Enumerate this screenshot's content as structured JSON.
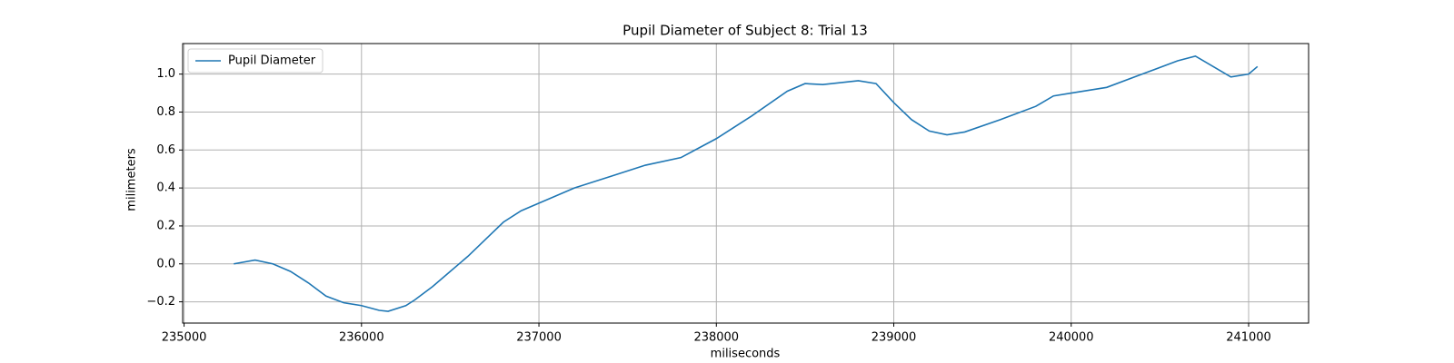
{
  "chart_data": {
    "type": "line",
    "title": "Pupil Diameter of Subject 8: Trial 13",
    "x_label": "miliseconds",
    "y_label": "milimeters",
    "x": [
      235280,
      235400,
      235500,
      235600,
      235700,
      235800,
      235900,
      236000,
      236100,
      236150,
      236250,
      236300,
      236400,
      236500,
      236600,
      236700,
      236800,
      236900,
      237000,
      237200,
      237400,
      237600,
      237800,
      238000,
      238200,
      238400,
      238500,
      238600,
      238800,
      238900,
      239000,
      239100,
      239200,
      239300,
      239400,
      239600,
      239800,
      239900,
      240000,
      240200,
      240400,
      240600,
      240700,
      240800,
      240900,
      241000,
      241050
    ],
    "series": [
      {
        "name": "Pupil Diameter",
        "color": "#1f77b4",
        "values": [
          0.0,
          0.02,
          0.0,
          -0.04,
          -0.1,
          -0.17,
          -0.205,
          -0.22,
          -0.245,
          -0.25,
          -0.22,
          -0.19,
          -0.12,
          -0.04,
          0.04,
          0.13,
          0.22,
          0.28,
          0.32,
          0.4,
          0.46,
          0.52,
          0.56,
          0.66,
          0.78,
          0.91,
          0.95,
          0.945,
          0.965,
          0.95,
          0.85,
          0.76,
          0.7,
          0.68,
          0.695,
          0.76,
          0.83,
          0.885,
          0.9,
          0.93,
          1.0,
          1.07,
          1.095,
          1.04,
          0.985,
          1.0,
          1.04
        ]
      }
    ],
    "xlim": [
      234992,
      241338
    ],
    "xticks": [
      235000,
      236000,
      237000,
      238000,
      239000,
      240000,
      241000
    ],
    "ylim": [
      -0.312,
      1.161
    ],
    "yticks": [
      {
        "value": -0.2,
        "label": "−0.2"
      },
      {
        "value": 0.0,
        "label": "0.0"
      },
      {
        "value": 0.2,
        "label": "0.2"
      },
      {
        "value": 0.4,
        "label": "0.4"
      },
      {
        "value": 0.6,
        "label": "0.6"
      },
      {
        "value": 0.8,
        "label": "0.8"
      },
      {
        "value": 1.0,
        "label": "1.0"
      }
    ],
    "grid": true,
    "legend": "upper left"
  }
}
